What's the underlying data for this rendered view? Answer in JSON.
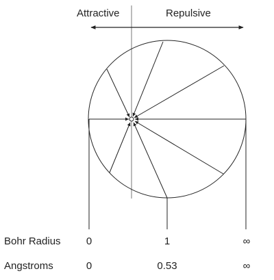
{
  "labels": {
    "attractive": "Attractive",
    "repulsive": "Repulsive"
  },
  "scale_rows": [
    {
      "name": "Bohr Radius",
      "values": [
        "0",
        "1",
        "∞"
      ]
    },
    {
      "name": "Angstroms",
      "values": [
        "0",
        "0.53",
        "∞"
      ]
    }
  ],
  "colors": {
    "line": "#222222",
    "background": "#ffffff"
  }
}
